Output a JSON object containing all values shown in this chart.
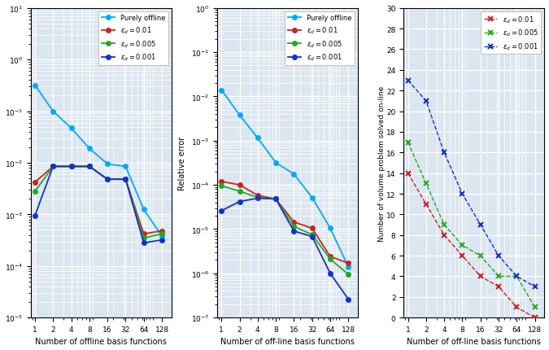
{
  "x_ticks": [
    1,
    2,
    4,
    8,
    16,
    32,
    64,
    128
  ],
  "panel1": {
    "xlabel": "Number of offline basis functions",
    "ylabel": "",
    "ylim": [
      1e-05,
      10.0
    ],
    "purely_offline": [
      0.32,
      0.1,
      0.047,
      0.019,
      0.0095,
      0.0085,
      0.00125,
      0.00038
    ],
    "eps_001": [
      0.0042,
      0.0085,
      0.0085,
      0.0085,
      0.0048,
      0.0048,
      0.00042,
      0.00048
    ],
    "eps_0005": [
      0.0028,
      0.0085,
      0.0085,
      0.0085,
      0.0048,
      0.0048,
      0.00035,
      0.00042
    ],
    "eps_0001": [
      0.00095,
      0.0085,
      0.0085,
      0.0085,
      0.0048,
      0.0048,
      0.00028,
      0.00032
    ]
  },
  "panel2": {
    "xlabel": "Number of off-line basis functions",
    "ylabel": "Relative error",
    "ylim": [
      1e-07,
      1.0
    ],
    "purely_offline": [
      0.014,
      0.0038,
      0.00115,
      0.00032,
      0.000175,
      5.2e-05,
      1.05e-05,
      1.4e-06
    ],
    "eps_001": [
      0.00012,
      0.0001,
      5.8e-05,
      4.8e-05,
      1.45e-05,
      1.05e-05,
      2.4e-06,
      1.7e-06
    ],
    "eps_0005": [
      9.5e-05,
      7.2e-05,
      5.2e-05,
      4.8e-05,
      1.15e-05,
      7.5e-06,
      2.1e-06,
      9.5e-07
    ],
    "eps_0001": [
      2.6e-05,
      4.2e-05,
      5e-05,
      4.8e-05,
      9e-06,
      6.8e-06,
      1e-06,
      2.6e-07
    ]
  },
  "panel3": {
    "xlabel": "Number of off-line basis functions",
    "ylabel": "Number of volume problem solved on-line",
    "ylim": [
      0,
      30
    ],
    "yticks": [
      0,
      2,
      4,
      6,
      8,
      10,
      12,
      14,
      16,
      18,
      20,
      22,
      24,
      26,
      28,
      30
    ],
    "eps_001": [
      14,
      11,
      8,
      6,
      4,
      3,
      1,
      0
    ],
    "eps_0005": [
      17,
      13,
      9,
      7,
      6,
      4,
      4,
      1
    ],
    "eps_0001": [
      23,
      21,
      16,
      12,
      9,
      6,
      4,
      3
    ]
  },
  "colors": {
    "purely_offline": "#00aaff",
    "eps_001": "#cc2222",
    "eps_0005": "#22aa22",
    "eps_0001": "#1133cc"
  },
  "bg_color": "#dce6f0",
  "grid_color": "#ffffff",
  "legend_labels": {
    "purely_offline": "Purely offline",
    "eps_001": "$\\varepsilon_d = 0.01$",
    "eps_0005": "$\\varepsilon_d = 0.005$",
    "eps_0001": "$\\varepsilon_d = 0.001$"
  }
}
